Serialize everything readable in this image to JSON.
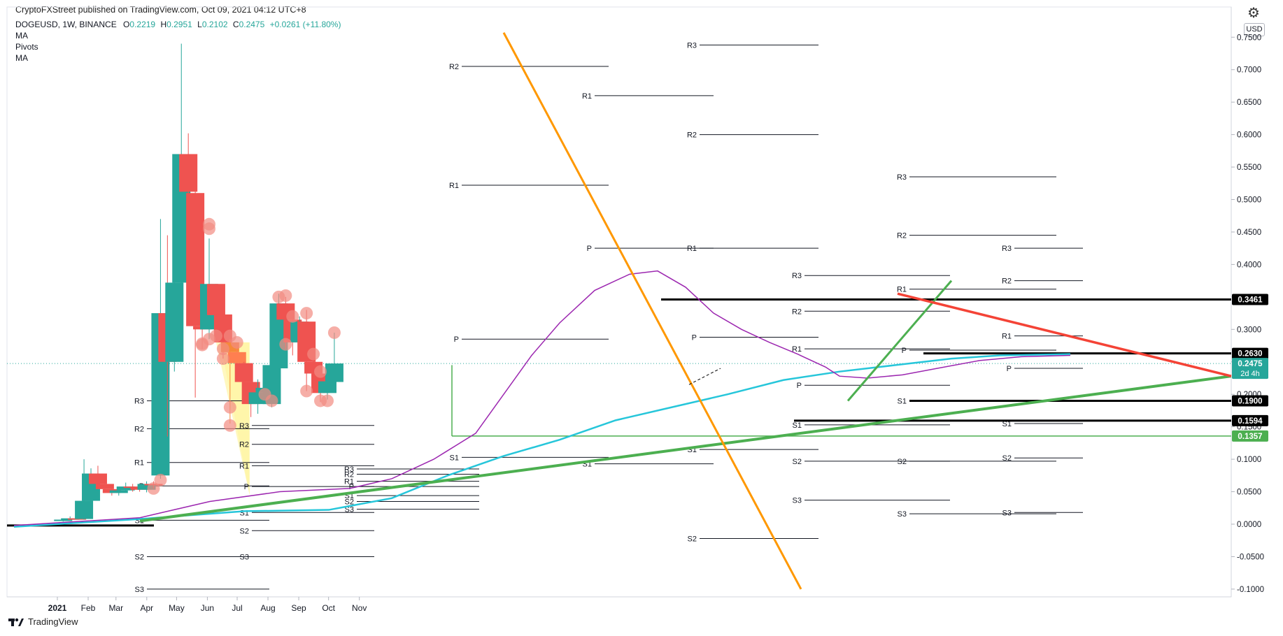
{
  "watermark": "CryptoFXStreet published on TradingView.com, Oct 09, 2021 04:12 UTC+8",
  "legend": {
    "symbol": "DOGEUSD, 1W, BINANCE",
    "open_label": "O",
    "open": "0.2219",
    "high_label": "H",
    "high": "0.2951",
    "low_label": "L",
    "low": "0.2102",
    "close_label": "C",
    "close": "0.2475",
    "change": "+0.0261 (+11.80%)",
    "indicators": [
      "MA",
      "Pivots",
      "MA"
    ]
  },
  "currency_button": "USD",
  "brand": "TradingView",
  "icons": {
    "settings": "gear-icon",
    "logo": "tradingview-logo-icon"
  },
  "colors": {
    "up": "#26a69a",
    "down": "#ef5350",
    "orange": "#ff9800",
    "cyan": "#26c6da",
    "purple": "#9c27b0",
    "green": "#4caf50",
    "red": "#f44336"
  },
  "chart_data": {
    "type": "candlestick",
    "symbol": "DOGEUSD",
    "interval": "1W",
    "y_axis": {
      "range": [
        -0.1,
        0.77
      ],
      "ticks": [
        "0.7500",
        "0.7000",
        "0.6500",
        "0.6000",
        "0.5500",
        "0.5000",
        "0.4500",
        "0.4000",
        "0.3500",
        "0.3000",
        "0.2500",
        "0.2000",
        "0.1500",
        "0.1000",
        "0.0500",
        "0.0000",
        "-0.0500",
        "-0.1000"
      ]
    },
    "x_axis": {
      "labels": [
        "2021",
        "Feb",
        "Mar",
        "Apr",
        "May",
        "Jun",
        "Jul",
        "Aug",
        "Sep",
        "Oct",
        "Nov"
      ]
    },
    "candles": [
      {
        "date": "2021-01-04",
        "o": 0.005,
        "h": 0.008,
        "l": 0.004,
        "c": 0.007
      },
      {
        "date": "2021-01-11",
        "o": 0.007,
        "h": 0.012,
        "l": 0.006,
        "c": 0.009
      },
      {
        "date": "2021-01-18",
        "o": 0.009,
        "h": 0.01,
        "l": 0.007,
        "c": 0.008
      },
      {
        "date": "2021-01-25",
        "o": 0.008,
        "h": 0.1,
        "l": 0.007,
        "c": 0.036
      },
      {
        "date": "2021-02-01",
        "o": 0.036,
        "h": 0.086,
        "l": 0.03,
        "c": 0.078
      },
      {
        "date": "2021-02-08",
        "o": 0.078,
        "h": 0.09,
        "l": 0.056,
        "c": 0.062
      },
      {
        "date": "2021-02-15",
        "o": 0.062,
        "h": 0.068,
        "l": 0.048,
        "c": 0.054
      },
      {
        "date": "2021-02-22",
        "o": 0.054,
        "h": 0.06,
        "l": 0.044,
        "c": 0.048
      },
      {
        "date": "2021-03-01",
        "o": 0.048,
        "h": 0.056,
        "l": 0.044,
        "c": 0.052
      },
      {
        "date": "2021-03-08",
        "o": 0.052,
        "h": 0.064,
        "l": 0.05,
        "c": 0.058
      },
      {
        "date": "2021-03-15",
        "o": 0.058,
        "h": 0.062,
        "l": 0.05,
        "c": 0.056
      },
      {
        "date": "2021-03-22",
        "o": 0.056,
        "h": 0.06,
        "l": 0.05,
        "c": 0.053
      },
      {
        "date": "2021-03-29",
        "o": 0.053,
        "h": 0.066,
        "l": 0.049,
        "c": 0.062
      },
      {
        "date": "2021-04-05",
        "o": 0.062,
        "h": 0.066,
        "l": 0.055,
        "c": 0.06
      },
      {
        "date": "2021-04-12",
        "o": 0.075,
        "h": 0.47,
        "l": 0.07,
        "c": 0.325
      },
      {
        "date": "2021-04-19",
        "o": 0.325,
        "h": 0.445,
        "l": 0.135,
        "c": 0.25
      },
      {
        "date": "2021-04-26",
        "o": 0.25,
        "h": 0.402,
        "l": 0.235,
        "c": 0.372
      },
      {
        "date": "2021-05-03",
        "o": 0.372,
        "h": 0.74,
        "l": 0.365,
        "c": 0.57
      },
      {
        "date": "2021-05-10",
        "o": 0.57,
        "h": 0.602,
        "l": 0.335,
        "c": 0.512
      },
      {
        "date": "2021-05-17",
        "o": 0.51,
        "h": 0.53,
        "l": 0.195,
        "c": 0.305
      },
      {
        "date": "2021-05-24",
        "o": 0.305,
        "h": 0.385,
        "l": 0.27,
        "c": 0.3
      },
      {
        "date": "2021-05-31",
        "o": 0.3,
        "h": 0.44,
        "l": 0.285,
        "c": 0.37
      },
      {
        "date": "2021-06-07",
        "o": 0.37,
        "h": 0.37,
        "l": 0.28,
        "c": 0.322
      },
      {
        "date": "2021-06-14",
        "o": 0.323,
        "h": 0.342,
        "l": 0.255,
        "c": 0.28
      },
      {
        "date": "2021-06-21",
        "o": 0.28,
        "h": 0.285,
        "l": 0.155,
        "c": 0.265
      },
      {
        "date": "2021-06-28",
        "o": 0.265,
        "h": 0.275,
        "l": 0.232,
        "c": 0.248
      },
      {
        "date": "2021-07-05",
        "o": 0.248,
        "h": 0.25,
        "l": 0.215,
        "c": 0.219
      },
      {
        "date": "2021-07-12",
        "o": 0.219,
        "h": 0.225,
        "l": 0.165,
        "c": 0.185
      },
      {
        "date": "2021-07-19",
        "o": 0.185,
        "h": 0.223,
        "l": 0.17,
        "c": 0.203
      },
      {
        "date": "2021-07-26",
        "o": 0.203,
        "h": 0.215,
        "l": 0.19,
        "c": 0.21
      },
      {
        "date": "2021-08-02",
        "o": 0.185,
        "h": 0.285,
        "l": 0.18,
        "c": 0.245
      },
      {
        "date": "2021-08-09",
        "o": 0.24,
        "h": 0.355,
        "l": 0.235,
        "c": 0.34
      },
      {
        "date": "2021-08-16",
        "o": 0.34,
        "h": 0.35,
        "l": 0.27,
        "c": 0.315
      },
      {
        "date": "2021-08-23",
        "o": 0.315,
        "h": 0.32,
        "l": 0.26,
        "c": 0.28
      },
      {
        "date": "2021-08-30",
        "o": 0.28,
        "h": 0.32,
        "l": 0.27,
        "c": 0.312
      },
      {
        "date": "2021-09-06",
        "o": 0.312,
        "h": 0.33,
        "l": 0.205,
        "c": 0.25
      },
      {
        "date": "2021-09-13",
        "o": 0.25,
        "h": 0.265,
        "l": 0.227,
        "c": 0.232
      },
      {
        "date": "2021-09-20",
        "o": 0.232,
        "h": 0.245,
        "l": 0.188,
        "c": 0.202
      },
      {
        "date": "2021-09-27",
        "o": 0.202,
        "h": 0.225,
        "l": 0.192,
        "c": 0.22
      },
      {
        "date": "2021-10-04",
        "o": 0.219,
        "h": 0.295,
        "l": 0.21,
        "c": 0.2475
      }
    ],
    "price_labels": [
      {
        "value": 0.3461,
        "text": "0.3461",
        "bg": "#000000"
      },
      {
        "value": 0.263,
        "text": "0.2630",
        "bg": "#000000"
      },
      {
        "value": 0.2475,
        "text": "0.2475",
        "sub": "2d 4h",
        "bg": "#26a69a"
      },
      {
        "value": 0.19,
        "text": "0.1900",
        "bg": "#000000"
      },
      {
        "value": 0.1594,
        "text": "0.1594",
        "bg": "#000000"
      },
      {
        "value": 0.1357,
        "text": "0.1357",
        "bg": "#4caf50"
      }
    ],
    "pivot_labels": [
      "R3",
      "R2",
      "R1",
      "P",
      "S1",
      "S2",
      "S3"
    ]
  }
}
